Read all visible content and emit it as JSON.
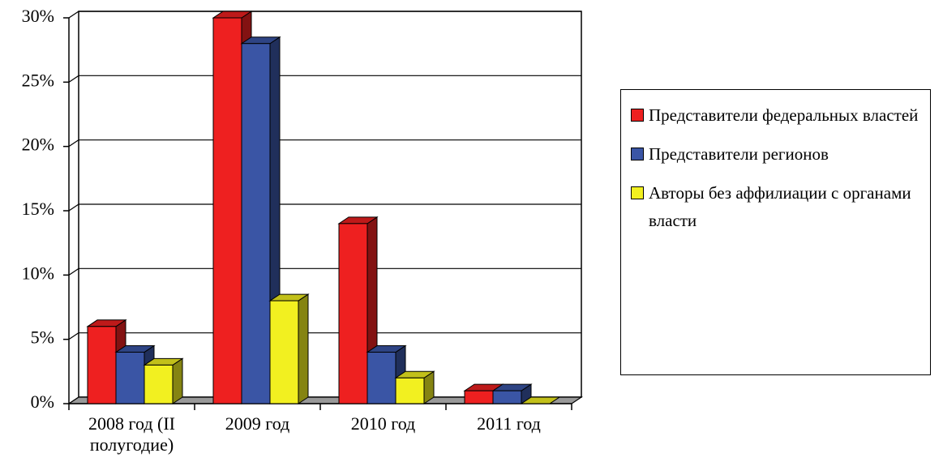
{
  "chart_data": {
    "type": "bar3d",
    "categories": [
      "2008 год (II полугодие)",
      "2009 год",
      "2010 год",
      "2011 год"
    ],
    "series": [
      {
        "name": "Представители федеральных властей",
        "color": "#ee2020",
        "values": [
          6,
          30,
          14,
          1
        ]
      },
      {
        "name": "Представители регионов",
        "color": "#3a55a5",
        "values": [
          4,
          28,
          4,
          1
        ]
      },
      {
        "name": "Авторы без аффилиации с органами власти",
        "color": "#f2f020",
        "values": [
          3,
          8,
          2,
          0
        ]
      }
    ],
    "ylim": [
      0,
      30
    ],
    "yticks": [
      {
        "value": 0,
        "label": "0%"
      },
      {
        "value": 5,
        "label": "5%"
      },
      {
        "value": 10,
        "label": "10%"
      },
      {
        "value": 15,
        "label": "15%"
      },
      {
        "value": 20,
        "label": "20%"
      },
      {
        "value": 25,
        "label": "25%"
      },
      {
        "value": 30,
        "label": "30%"
      }
    ],
    "grid": true,
    "legend": "right"
  }
}
